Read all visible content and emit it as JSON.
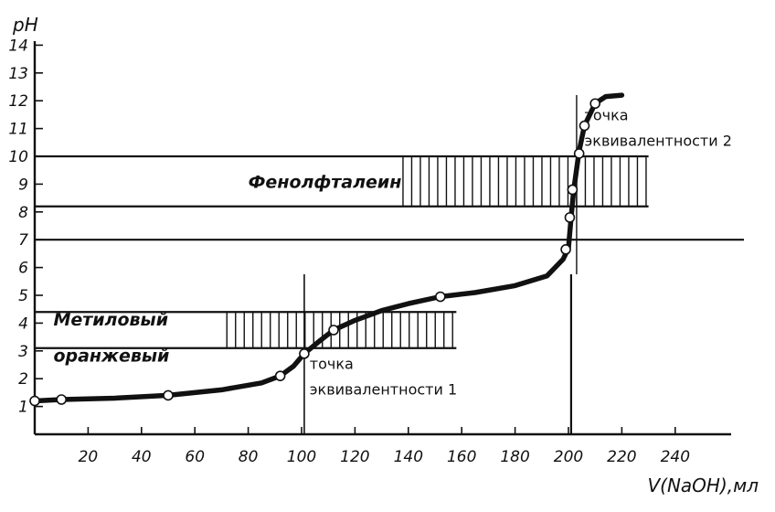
{
  "chart_data": {
    "type": "line",
    "xlabel": "V(NaOH),мл",
    "ylabel": "pH",
    "xlim": [
      0,
      260
    ],
    "ylim": [
      0,
      14.5
    ],
    "x_ticks": [
      20,
      40,
      60,
      80,
      100,
      120,
      140,
      160,
      180,
      200,
      220,
      240
    ],
    "y_ticks": [
      1,
      2,
      3,
      4,
      5,
      6,
      7,
      8,
      9,
      10,
      11,
      12,
      13,
      14
    ],
    "series": [
      {
        "values": [
          [
            0,
            1.2
          ],
          [
            10,
            1.25
          ],
          [
            30,
            1.3
          ],
          [
            50,
            1.4
          ],
          [
            70,
            1.6
          ],
          [
            85,
            1.85
          ],
          [
            92,
            2.1
          ],
          [
            97,
            2.45
          ],
          [
            101,
            2.9
          ],
          [
            106,
            3.3
          ],
          [
            112,
            3.75
          ],
          [
            120,
            4.1
          ],
          [
            130,
            4.45
          ],
          [
            140,
            4.7
          ],
          [
            152,
            4.95
          ],
          [
            165,
            5.1
          ],
          [
            180,
            5.35
          ],
          [
            192,
            5.7
          ],
          [
            198,
            6.3
          ],
          [
            200,
            6.7
          ],
          [
            201,
            7.8
          ],
          [
            202,
            8.8
          ],
          [
            204,
            10.2
          ],
          [
            206,
            11.1
          ],
          [
            210,
            11.9
          ],
          [
            214,
            12.15
          ],
          [
            220,
            12.2
          ]
        ],
        "markers": [
          [
            0,
            1.2
          ],
          [
            10,
            1.25
          ],
          [
            50,
            1.4
          ],
          [
            92,
            2.1
          ],
          [
            101,
            2.9
          ],
          [
            112,
            3.75
          ],
          [
            152,
            4.95
          ],
          [
            199,
            6.65
          ],
          [
            200.5,
            7.8
          ],
          [
            201.5,
            8.8
          ],
          [
            204,
            10.1
          ],
          [
            206,
            11.1
          ],
          [
            210,
            11.9
          ]
        ]
      }
    ],
    "indicator_bands": [
      {
        "label": "Фенолфталеин",
        "ph_range": [
          8.2,
          10.0
        ],
        "hatch_x_range": [
          138,
          230
        ],
        "x_range": [
          0,
          230
        ]
      },
      {
        "label_lines": [
          "Метиловый",
          "оранжевый"
        ],
        "ph_range": [
          3.1,
          4.4
        ],
        "hatch_x_range": [
          72,
          158
        ],
        "x_range": [
          0,
          158
        ]
      }
    ],
    "reference_lines": {
      "horizontal_ph": 7,
      "vertical_x": [
        101,
        201
      ]
    },
    "annotations": [
      {
        "lines": [
          "точка",
          "эквивалентности 1"
        ],
        "at": [
          103,
          2.35
        ]
      },
      {
        "lines": [
          "точка",
          "эквивалентности 2"
        ],
        "at": [
          206,
          11.3
        ]
      }
    ]
  }
}
